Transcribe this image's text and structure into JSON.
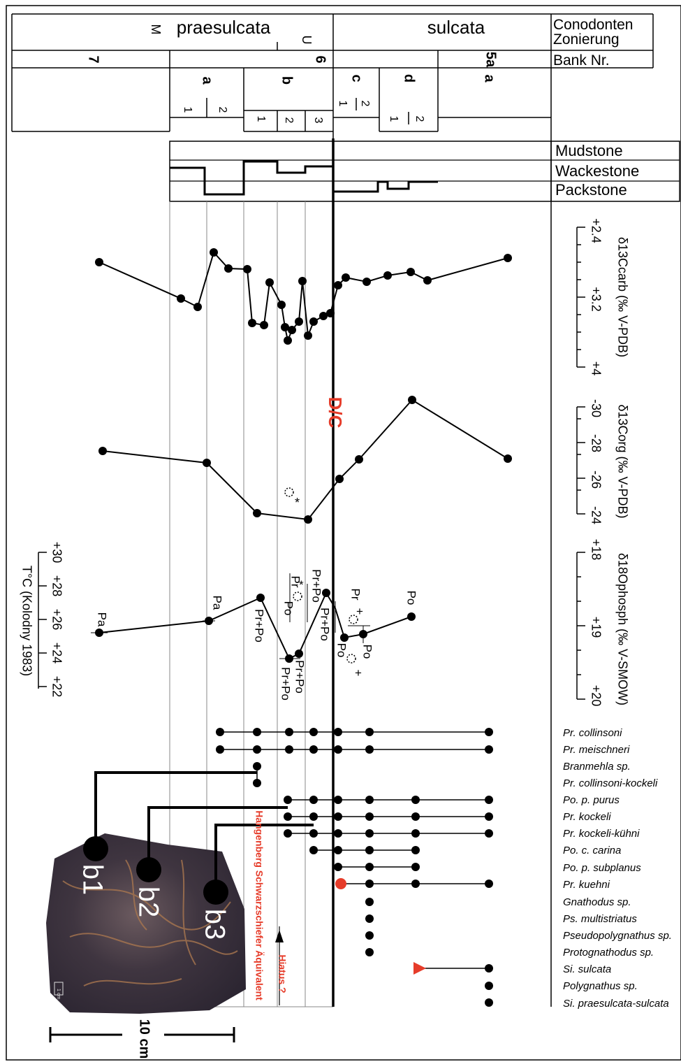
{
  "header": {
    "zone_praesulcata": "praesulcata",
    "zone_sulcata": "sulcata",
    "zone_label_m": "M",
    "zone_label_u": "U",
    "conodonten_line1": "Conodonten",
    "conodonten_line2": "Zonierung",
    "bank_label": "Bank Nr.",
    "bank_7": "7",
    "bank_6": "6",
    "bank_5a": "5a",
    "sub_a": "a",
    "sub_b": "b",
    "sub_c": "c",
    "sub_d": "d",
    "n1": "1",
    "n2": "2",
    "n3": "3"
  },
  "lithology": {
    "mudstone": "Mudstone",
    "wackestone": "Wackestone",
    "packstone": "Packstone"
  },
  "boundary_label": "D/C",
  "axes": {
    "c13carb": {
      "label": "δ13Ccarb (‰ V-PDB)",
      "ticks": [
        "+2.4",
        "+3.2",
        "+4"
      ]
    },
    "c13org": {
      "label": "δ13Corg (‰ V-PDB)",
      "ticks": [
        "-30",
        "-28",
        "-26",
        "-24"
      ]
    },
    "o18": {
      "label": "δ18Ophosph (‰ V-SMOW)",
      "ticks": [
        "+18",
        "+19",
        "+20"
      ]
    },
    "temp": {
      "label": "T°C (Kolodny 1983)",
      "ticks": [
        "+30",
        "+28",
        "+26",
        "+24",
        "+22"
      ]
    }
  },
  "o18_labels": [
    "Pa",
    "Pa",
    "Pr+Po",
    "Pr+Po",
    "Pr+Po",
    "Pr+Po",
    "Pr",
    "Po",
    "Pr+Po",
    "Pr",
    "Po",
    "Po",
    "Po"
  ],
  "o18_marks": [
    "*",
    "*",
    "+",
    "+"
  ],
  "taxa": [
    {
      "name": "Pr. collinsoni"
    },
    {
      "name": "Pr. meischneri"
    },
    {
      "name": "Branmehla sp."
    },
    {
      "name": "Pr. collinsoni-kockeli"
    },
    {
      "name": "Po. p. purus"
    },
    {
      "name": "Pr. kockeli"
    },
    {
      "name": "Pr. kockeli-kühni"
    },
    {
      "name": "Po. c. carina"
    },
    {
      "name": "Po. p. subplanus"
    },
    {
      "name": "Pr. kuehni"
    },
    {
      "name": "Gnathodus sp."
    },
    {
      "name": "Ps. multistriatus"
    },
    {
      "name": "Pseudopolygnathus sp."
    },
    {
      "name": "Protognathodus sp."
    },
    {
      "name": "Si. sulcata"
    },
    {
      "name": "Polygnathus sp."
    },
    {
      "name": "Si. praesulcata-sulcata"
    }
  ],
  "photo_labels": {
    "b1": "b1",
    "b2": "b2",
    "b3": "b3",
    "scale": "10 cm",
    "cm": "1 cm"
  },
  "hiatus_text": "Hangenberg Schwarzschiefer Äquivalent",
  "hiatus_arrow_text": "Hiatus ?",
  "colors": {
    "line": "#000000",
    "red": "#e63c2a",
    "grid": "#888888"
  }
}
